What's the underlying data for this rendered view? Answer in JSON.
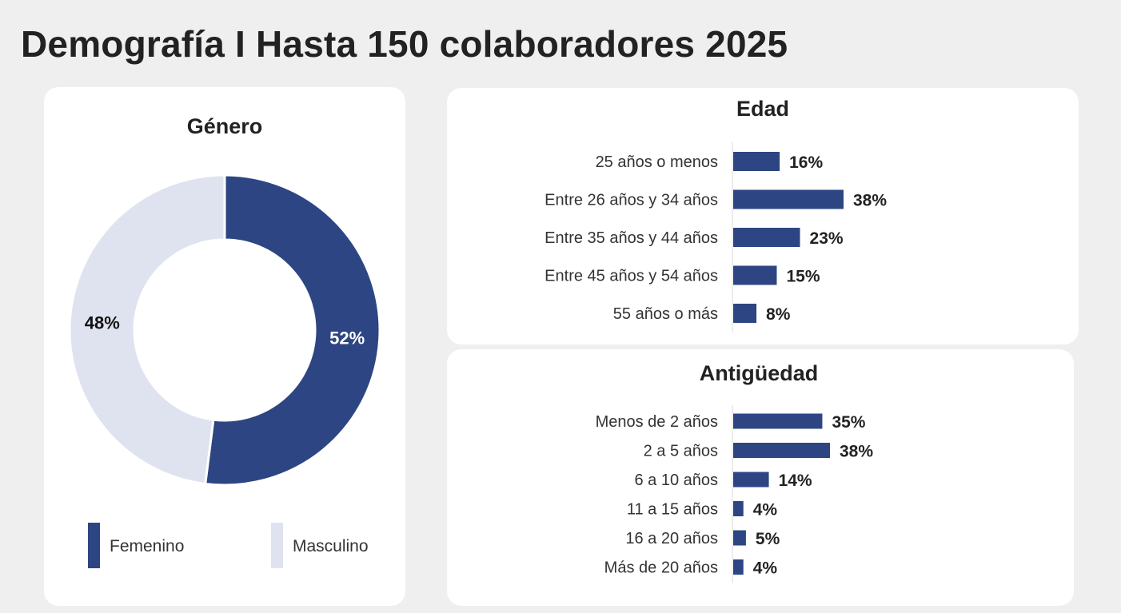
{
  "page": {
    "title": "Demografía I Hasta 150 colaboradores 2025"
  },
  "colors": {
    "primary": "#2d4583",
    "secondary": "#dfe3ef",
    "axis": "#d8d8d8"
  },
  "chart_data": [
    {
      "id": "genero",
      "type": "pie",
      "title": "Género",
      "donut": true,
      "categories": [
        "Femenino",
        "Masculino"
      ],
      "values": [
        52,
        48
      ],
      "labels": [
        "52%",
        "48%"
      ],
      "colors": [
        "#2d4583",
        "#dfe3ef"
      ],
      "legend_position": "bottom"
    },
    {
      "id": "edad",
      "type": "bar",
      "orientation": "horizontal",
      "title": "Edad",
      "categories": [
        "25 años o menos",
        "Entre 26 años y 34 años",
        "Entre 35 años y 44 años",
        "Entre 45 años y 54 años",
        "55 años o más"
      ],
      "values": [
        16,
        38,
        23,
        15,
        8
      ],
      "labels": [
        "16%",
        "38%",
        "23%",
        "15%",
        "8%"
      ],
      "unit": "%",
      "color": "#2d4583",
      "grid": false
    },
    {
      "id": "antiguedad",
      "type": "bar",
      "orientation": "horizontal",
      "title": "Antigüedad",
      "categories": [
        "Menos de 2 años",
        "2 a 5 años",
        "6 a 10 años",
        "11 a 15 años",
        "16 a 20 años",
        "Más de 20 años"
      ],
      "values": [
        35,
        38,
        14,
        4,
        5,
        4
      ],
      "labels": [
        "35%",
        "38%",
        "14%",
        "4%",
        "5%",
        "4%"
      ],
      "unit": "%",
      "color": "#2d4583",
      "grid": false
    }
  ]
}
